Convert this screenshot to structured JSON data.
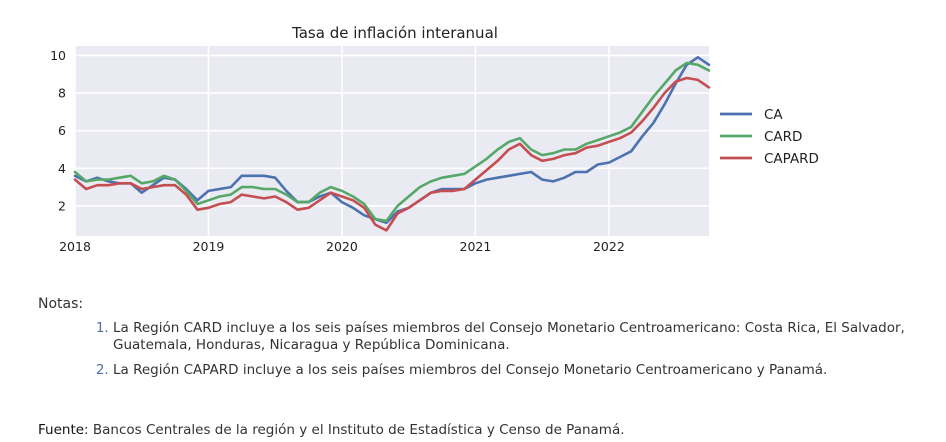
{
  "chart_data": {
    "type": "line",
    "title": "Tasa de inflación interanual",
    "xlabel": "",
    "ylabel": "",
    "x_ticks": [
      "2018",
      "2019",
      "2020",
      "2021",
      "2022"
    ],
    "y_ticks": [
      "2",
      "4",
      "6",
      "8",
      "10"
    ],
    "x_range": [
      2018.0,
      2022.75
    ],
    "ylim": [
      0.4,
      10.5
    ],
    "grid": true,
    "legend_position": "right",
    "x": [
      2018.0,
      2018.083,
      2018.167,
      2018.25,
      2018.333,
      2018.417,
      2018.5,
      2018.583,
      2018.667,
      2018.75,
      2018.833,
      2018.917,
      2019.0,
      2019.083,
      2019.167,
      2019.25,
      2019.333,
      2019.417,
      2019.5,
      2019.583,
      2019.667,
      2019.75,
      2019.833,
      2019.917,
      2020.0,
      2020.083,
      2020.167,
      2020.25,
      2020.333,
      2020.417,
      2020.5,
      2020.583,
      2020.667,
      2020.75,
      2020.833,
      2020.917,
      2021.0,
      2021.083,
      2021.167,
      2021.25,
      2021.333,
      2021.417,
      2021.5,
      2021.583,
      2021.667,
      2021.75,
      2021.833,
      2021.917,
      2022.0,
      2022.083,
      2022.167,
      2022.25,
      2022.333,
      2022.417,
      2022.5,
      2022.583,
      2022.667,
      2022.75
    ],
    "series": [
      {
        "name": "CA",
        "color": "#4c72b0",
        "values": [
          3.6,
          3.3,
          3.5,
          3.3,
          3.2,
          3.2,
          2.7,
          3.1,
          3.5,
          3.4,
          2.9,
          2.3,
          2.8,
          2.9,
          3.0,
          3.6,
          3.6,
          3.6,
          3.5,
          2.8,
          2.2,
          2.2,
          2.5,
          2.7,
          2.2,
          1.9,
          1.5,
          1.3,
          1.1,
          1.7,
          1.9,
          2.3,
          2.7,
          2.9,
          2.9,
          2.9,
          3.2,
          3.4,
          3.5,
          3.6,
          3.7,
          3.8,
          3.4,
          3.3,
          3.5,
          3.8,
          3.8,
          4.2,
          4.3,
          4.6,
          4.9,
          5.7,
          6.4,
          7.4,
          8.5,
          9.5,
          9.9,
          9.5
        ]
      },
      {
        "name": "CARD",
        "color": "#55a868",
        "values": [
          3.8,
          3.3,
          3.4,
          3.4,
          3.5,
          3.6,
          3.2,
          3.3,
          3.6,
          3.4,
          2.8,
          2.1,
          2.3,
          2.5,
          2.6,
          3.0,
          3.0,
          2.9,
          2.9,
          2.6,
          2.2,
          2.2,
          2.7,
          3.0,
          2.8,
          2.5,
          2.1,
          1.3,
          1.2,
          2.0,
          2.5,
          3.0,
          3.3,
          3.5,
          3.6,
          3.7,
          4.1,
          4.5,
          5.0,
          5.4,
          5.6,
          5.0,
          4.7,
          4.8,
          5.0,
          5.0,
          5.3,
          5.5,
          5.7,
          5.9,
          6.2,
          7.0,
          7.8,
          8.5,
          9.2,
          9.6,
          9.5,
          9.2
        ]
      },
      {
        "name": "CAPARD",
        "color": "#c44e52",
        "values": [
          3.4,
          2.9,
          3.1,
          3.1,
          3.2,
          3.2,
          2.9,
          3.0,
          3.1,
          3.1,
          2.6,
          1.8,
          1.9,
          2.1,
          2.2,
          2.6,
          2.5,
          2.4,
          2.5,
          2.2,
          1.8,
          1.9,
          2.3,
          2.7,
          2.5,
          2.3,
          1.9,
          1.0,
          0.7,
          1.6,
          1.9,
          2.3,
          2.7,
          2.8,
          2.8,
          2.9,
          3.4,
          3.9,
          4.4,
          5.0,
          5.3,
          4.7,
          4.4,
          4.5,
          4.7,
          4.8,
          5.1,
          5.2,
          5.4,
          5.6,
          5.9,
          6.5,
          7.2,
          8.0,
          8.6,
          8.8,
          8.7,
          8.3
        ]
      }
    ]
  },
  "notes": {
    "heading": "Notas:",
    "items": [
      "La Región CARD incluye a los seis países miembros del Consejo Monetario Centroamericano: Costa Rica, El Salvador, Guatemala, Honduras, Nicaragua y República Dominicana.",
      "La Región CAPARD incluye a los seis países miembros del Consejo Monetario Centroamericano y Panamá."
    ]
  },
  "source": {
    "label": "Fuente",
    "text": ": Bancos Centrales de la región y el Instituto de Estadística y Censo de Panamá."
  }
}
